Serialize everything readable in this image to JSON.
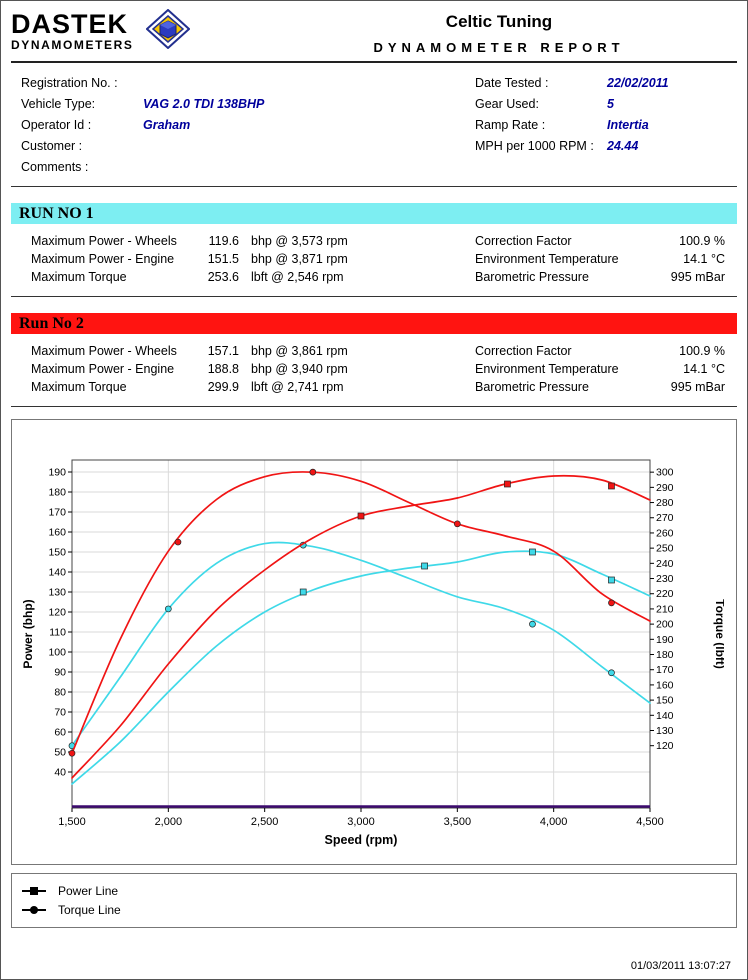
{
  "header": {
    "brand": "DASTEK",
    "brand_sub": "DYNAMOMETERS",
    "logo_icon": "dastek-diamond-logo",
    "title": "Celtic Tuning",
    "subtitle": "DYNAMOMETER REPORT"
  },
  "info": {
    "left": [
      {
        "label": "Registration No. :",
        "value": ""
      },
      {
        "label": "Vehicle Type:",
        "value": "VAG 2.0 TDI 138BHP"
      },
      {
        "label": "Operator Id :",
        "value": "Graham"
      },
      {
        "label": "Customer :",
        "value": ""
      },
      {
        "label": "Comments :",
        "value": ""
      }
    ],
    "right": [
      {
        "label": "Date Tested :",
        "value": "22/02/2011"
      },
      {
        "label": "Gear Used:",
        "value": "5"
      },
      {
        "label": "Ramp Rate :",
        "value": "Intertia"
      },
      {
        "label": "MPH per 1000 RPM :",
        "value": "24.44"
      }
    ]
  },
  "runs": [
    {
      "banner": "RUN NO 1",
      "banner_color": "#7deef2",
      "metrics": [
        {
          "label": "Maximum Power - Wheels",
          "value": "119.6",
          "unit": "bhp @ 3,573 rpm"
        },
        {
          "label": "Maximum Power - Engine",
          "value": "151.5",
          "unit": "bhp @ 3,871 rpm"
        },
        {
          "label": "Maximum Torque",
          "value": "253.6",
          "unit": "lbft @ 2,546 rpm"
        }
      ],
      "conditions": [
        {
          "label": "Correction Factor",
          "value": "100.9 %"
        },
        {
          "label": "Environment Temperature",
          "value": "14.1 °C"
        },
        {
          "label": "Barometric Pressure",
          "value": "995 mBar"
        }
      ]
    },
    {
      "banner": "Run No 2",
      "banner_color": "#ff1411",
      "metrics": [
        {
          "label": "Maximum Power - Wheels",
          "value": "157.1",
          "unit": "bhp @ 3,861 rpm"
        },
        {
          "label": "Maximum Power - Engine",
          "value": "188.8",
          "unit": "bhp @ 3,940 rpm"
        },
        {
          "label": "Maximum Torque",
          "value": "299.9",
          "unit": "lbft @ 2,741 rpm"
        }
      ],
      "conditions": [
        {
          "label": "Correction Factor",
          "value": "100.9 %"
        },
        {
          "label": "Environment Temperature",
          "value": "14.1 °C"
        },
        {
          "label": "Barometric Pressure",
          "value": "995 mBar"
        }
      ]
    }
  ],
  "chart_data": {
    "type": "line",
    "xlabel": "Speed (rpm)",
    "ylabel_left": "Power (bhp)",
    "ylabel_right": "Torque (lbft)",
    "xlim": [
      1500,
      4500
    ],
    "x_ticks": [
      1500,
      2000,
      2500,
      3000,
      3500,
      4000,
      4500
    ],
    "x_tick_labels": [
      "1,500",
      "2,000",
      "2,500",
      "3,000",
      "3,500",
      "4,000",
      "4,500"
    ],
    "ylim_left": [
      22,
      196
    ],
    "y_ticks_left": [
      40,
      50,
      60,
      70,
      80,
      90,
      100,
      110,
      120,
      130,
      140,
      150,
      160,
      170,
      180,
      190
    ],
    "ylim_right": [
      79,
      308
    ],
    "y_ticks_right": [
      120,
      130,
      140,
      150,
      160,
      170,
      180,
      190,
      200,
      210,
      220,
      230,
      240,
      250,
      260,
      270,
      280,
      290,
      300
    ],
    "grid": true,
    "legend_position": "bottom-box",
    "x": [
      1500,
      1750,
      2000,
      2250,
      2500,
      2750,
      3000,
      3250,
      3500,
      3750,
      4000,
      4250,
      4500
    ],
    "series": [
      {
        "name": "Run 1 Power",
        "axis": "left",
        "color": "#3fd9e8",
        "marker": "square",
        "values": [
          34,
          55,
          80,
          103,
          120,
          131,
          138,
          142,
          145,
          150,
          149,
          139,
          128
        ],
        "markers_at": [
          [
            2700,
            130
          ],
          [
            3330,
            143
          ],
          [
            3890,
            150
          ],
          [
            4300,
            136
          ]
        ]
      },
      {
        "name": "Run 1 Torque",
        "axis": "right",
        "color": "#3fd9e8",
        "marker": "circle",
        "values": [
          120,
          165,
          210,
          240,
          253,
          251,
          242,
          230,
          218,
          210,
          196,
          172,
          148
        ],
        "markers_at": [
          [
            1500,
            120
          ],
          [
            2000,
            210
          ],
          [
            2700,
            252
          ],
          [
            3890,
            200
          ],
          [
            4300,
            168
          ]
        ]
      },
      {
        "name": "Run 2 Power",
        "axis": "left",
        "color": "#f01414",
        "marker": "square",
        "values": [
          37,
          63,
          94,
          121,
          141,
          157,
          168,
          173,
          177,
          184,
          188,
          186,
          176
        ],
        "markers_at": [
          [
            3000,
            168
          ],
          [
            3760,
            184
          ],
          [
            4300,
            183
          ]
        ]
      },
      {
        "name": "Run 2 Torque",
        "axis": "right",
        "color": "#f01414",
        "marker": "circle",
        "values": [
          115,
          190,
          248,
          282,
          297,
          300,
          294,
          280,
          266,
          258,
          248,
          220,
          202
        ],
        "markers_at": [
          [
            1500,
            115
          ],
          [
            2050,
            254
          ],
          [
            2750,
            300
          ],
          [
            3500,
            266
          ],
          [
            4300,
            214
          ]
        ]
      }
    ],
    "baseline_color": "#3c0a6e"
  },
  "legend": {
    "items": [
      {
        "marker": "square",
        "label": "Power Line"
      },
      {
        "marker": "circle",
        "label": "Torque Line"
      }
    ]
  },
  "footer": {
    "timestamp": "01/03/2011 13:07:27"
  }
}
